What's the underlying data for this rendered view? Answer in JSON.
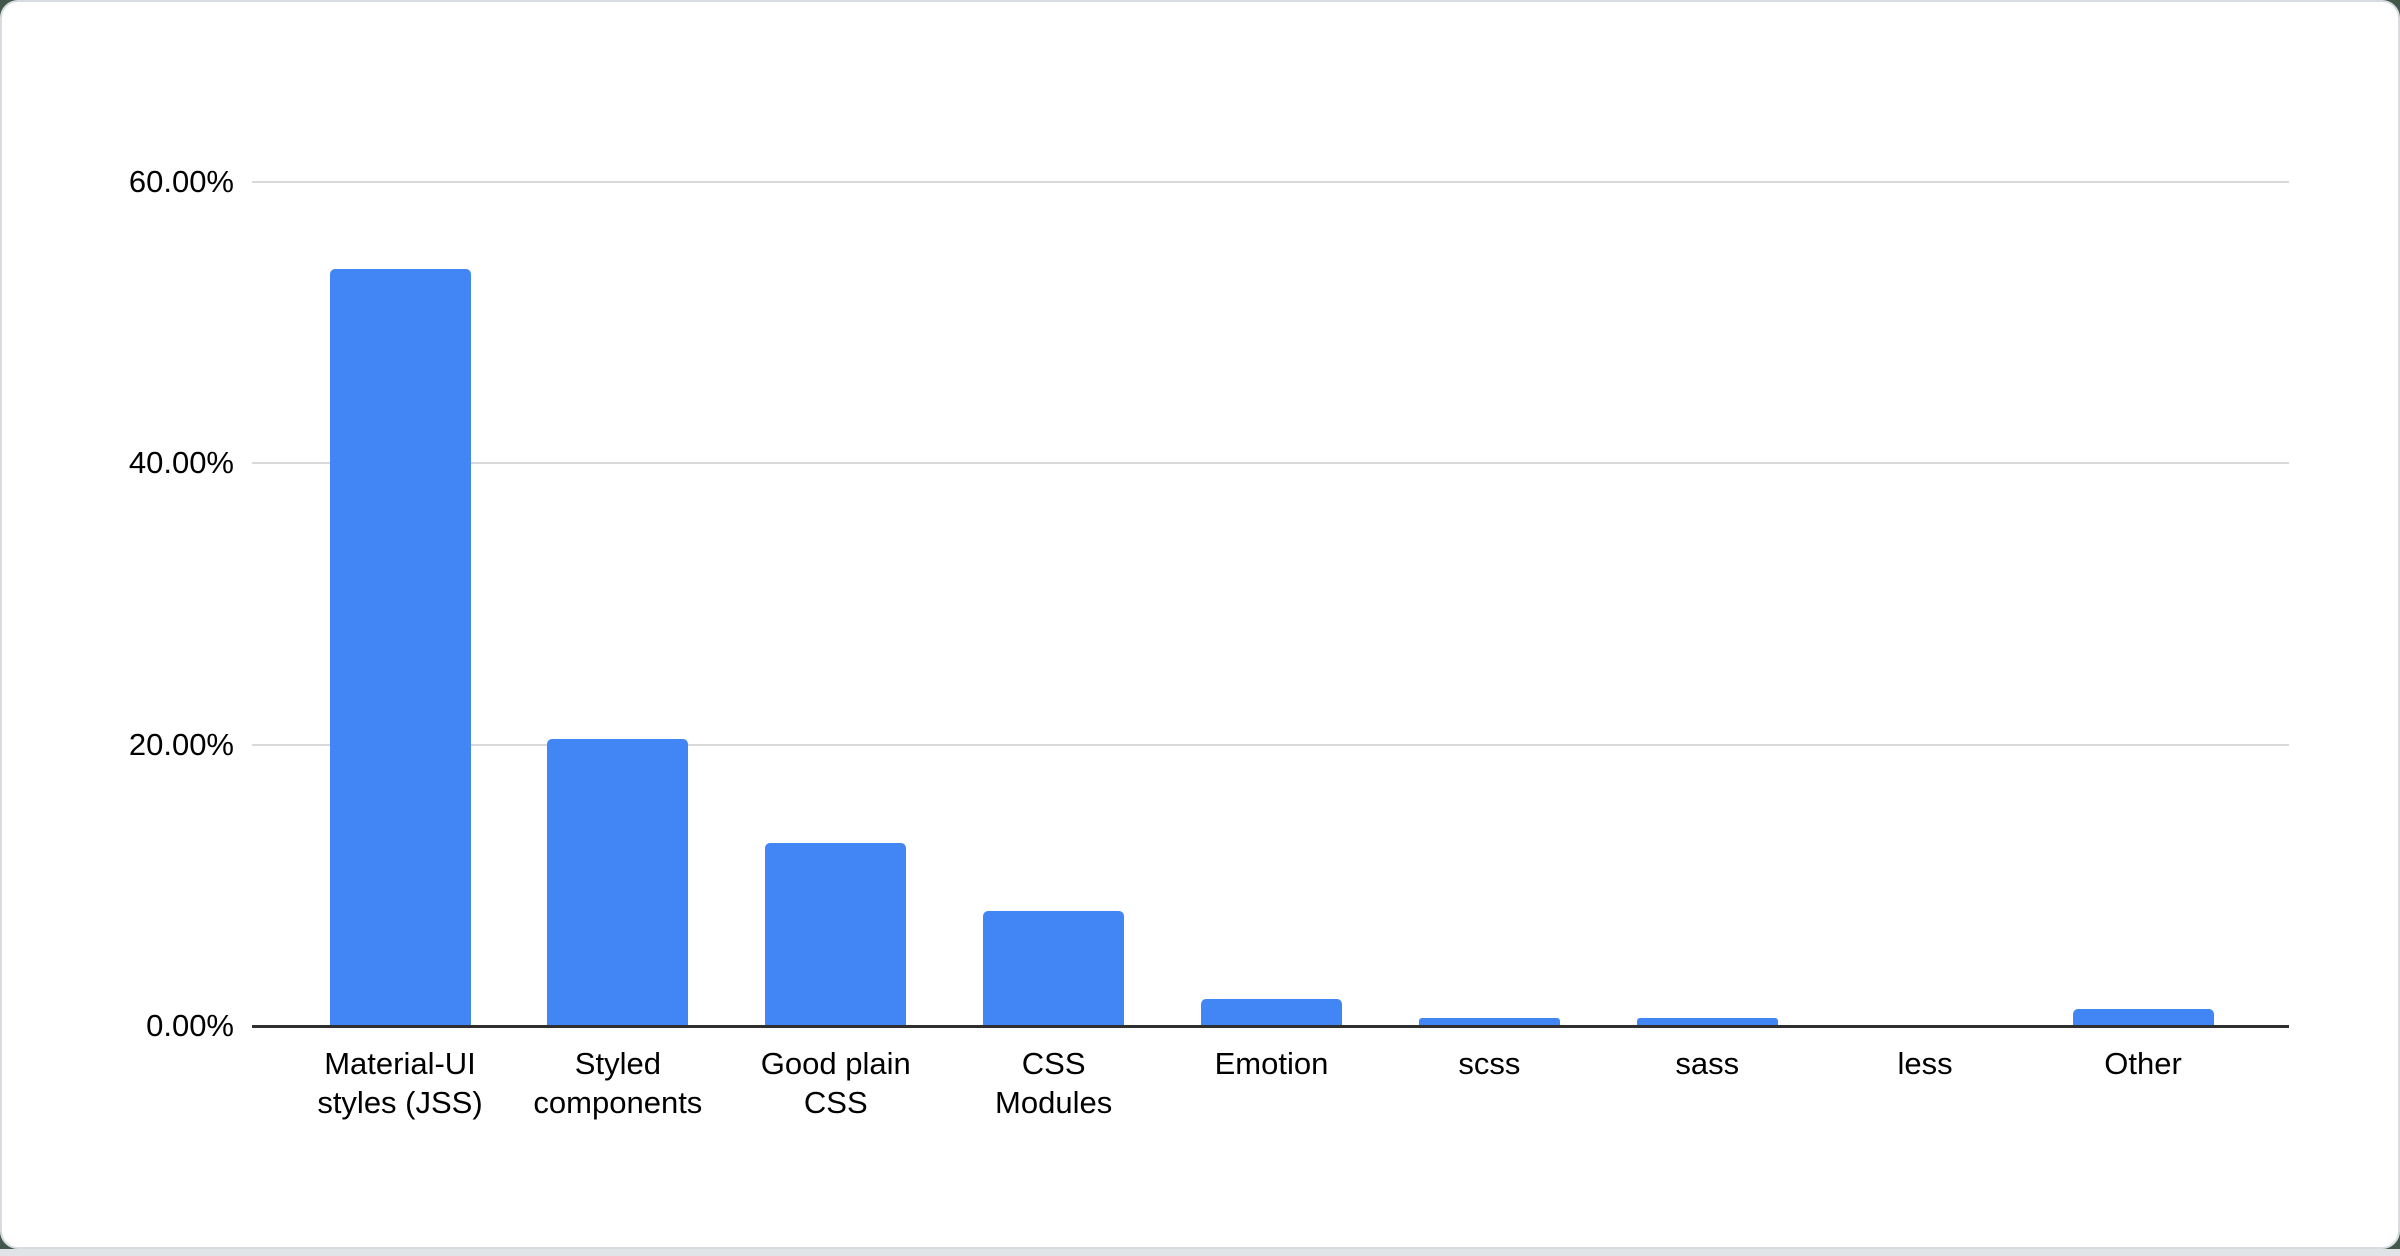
{
  "window": {
    "backdrop_color": "#41584a",
    "card_color": "#ffffff",
    "card_border_color": "#d8dce0",
    "bottom_strip_color": "#e1e4e7"
  },
  "chart_data": {
    "type": "bar",
    "title": "",
    "xlabel": "",
    "ylabel": "",
    "legend": "none",
    "grid": "horizontal",
    "ylim": [
      0,
      60
    ],
    "bar_color": "#4285f4",
    "gridline_color": "#d9d9d9",
    "axis_line_color": "#2f2f2f",
    "tick_label_color": "#000000",
    "categories": [
      "Material-UI styles (JSS)",
      "Styled components",
      "Good plain CSS",
      "CSS Modules",
      "Emotion",
      "scss",
      "sass",
      "less",
      "Other"
    ],
    "category_label_lines": [
      [
        "Material-UI",
        "styles (JSS)"
      ],
      [
        "Styled",
        "components"
      ],
      [
        "Good plain",
        "CSS"
      ],
      [
        "CSS",
        "Modules"
      ],
      [
        "Emotion"
      ],
      [
        "scss"
      ],
      [
        "sass"
      ],
      [
        "less"
      ],
      [
        "Other"
      ]
    ],
    "values": [
      53.8,
      20.4,
      13.0,
      8.2,
      1.9,
      0.6,
      0.6,
      0.1,
      1.2
    ],
    "y_ticks": [
      {
        "value": 0,
        "label": "0.00%"
      },
      {
        "value": 20,
        "label": "20.00%"
      },
      {
        "value": 40,
        "label": "40.00%"
      },
      {
        "value": 60,
        "label": "60.00%"
      }
    ]
  }
}
